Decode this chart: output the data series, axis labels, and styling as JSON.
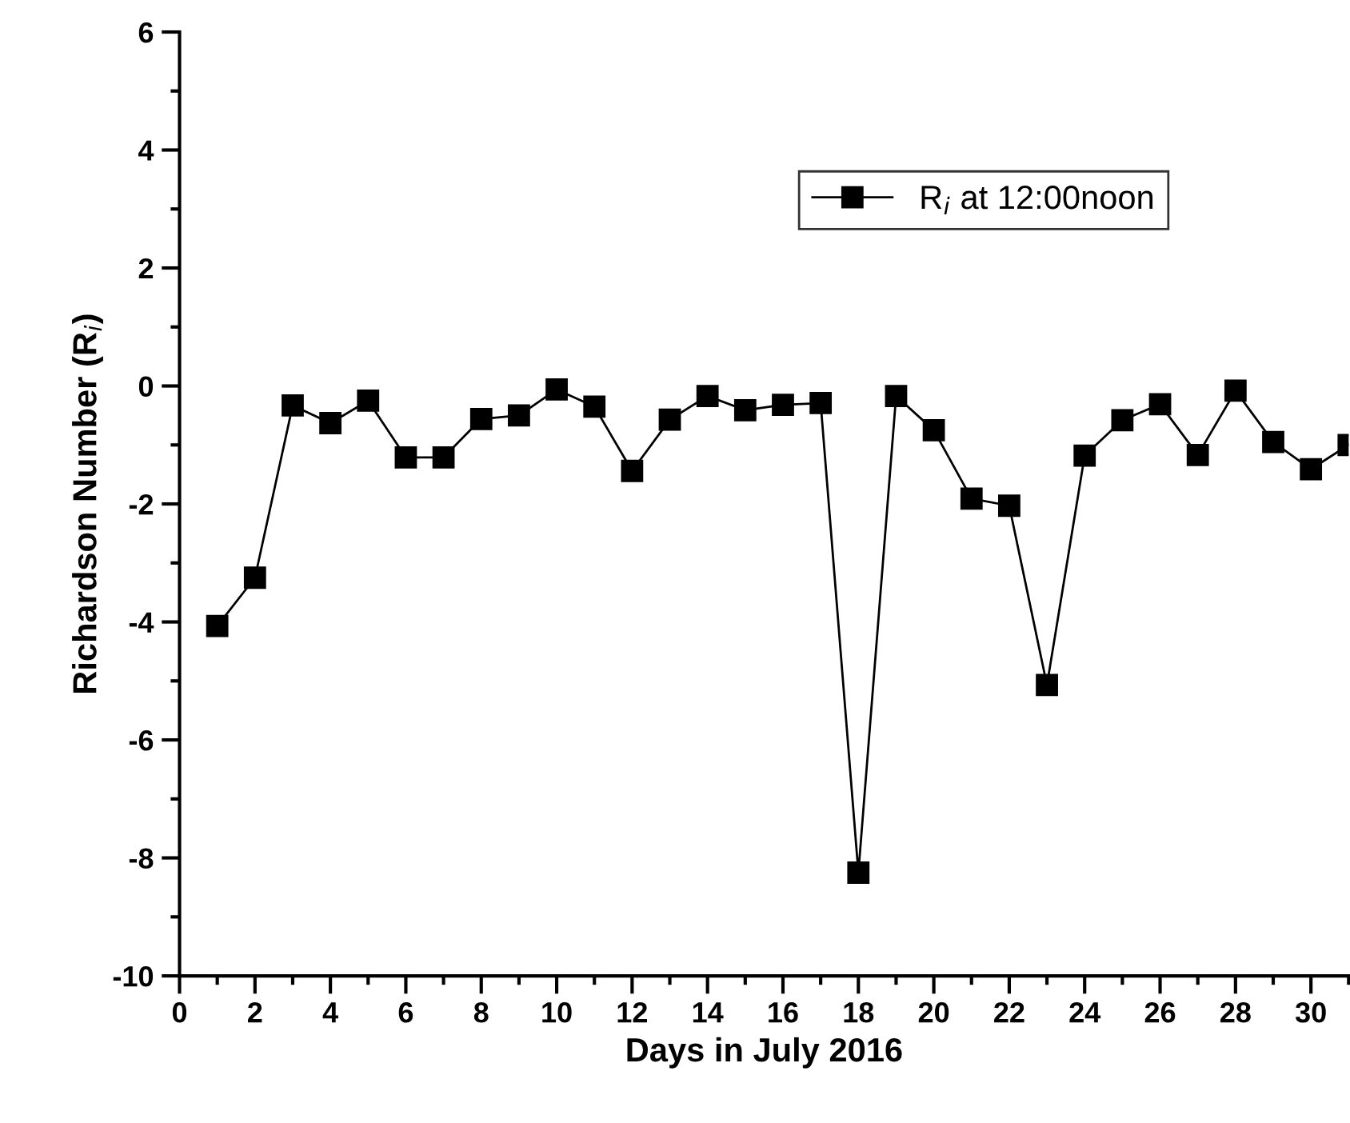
{
  "chart_data": {
    "type": "line",
    "xlabel": "Days in July 2016",
    "ylabel": "Richardson Number (R$_{i}$)",
    "x": [
      1,
      2,
      3,
      4,
      5,
      6,
      7,
      8,
      9,
      10,
      11,
      12,
      13,
      14,
      15,
      16,
      17,
      18,
      19,
      20,
      21,
      22,
      23,
      24,
      25,
      26,
      27,
      28,
      29,
      30,
      31
    ],
    "series": [
      {
        "name": "R$_{i}$ at 12:00noon",
        "color": "#000000",
        "values": [
          -4.07,
          -3.25,
          -0.33,
          -0.63,
          -0.25,
          -1.21,
          -1.21,
          -0.56,
          -0.5,
          -0.06,
          -0.35,
          -1.44,
          -0.57,
          -0.17,
          -0.41,
          -0.32,
          -0.29,
          -8.25,
          -0.17,
          -0.75,
          -1.91,
          -2.03,
          -5.07,
          -1.18,
          -0.58,
          -0.31,
          -1.17,
          -0.08,
          -0.95,
          -1.41,
          -1.0
        ]
      }
    ],
    "xlim": [
      0,
      31
    ],
    "ylim": [
      -10,
      6
    ],
    "xticks": [
      0,
      {
        "value": 1,
        "label": null
      },
      2,
      {
        "value": 3,
        "label": null
      },
      4,
      {
        "value": 5,
        "label": null
      },
      6,
      {
        "value": 7,
        "label": null
      },
      8,
      {
        "value": 9,
        "label": null
      },
      10,
      {
        "value": 11,
        "label": null
      },
      12,
      {
        "value": 13,
        "label": null
      },
      14,
      {
        "value": 15,
        "label": null
      },
      16,
      {
        "value": 17,
        "label": null
      },
      18,
      {
        "value": 19,
        "label": null
      },
      20,
      {
        "value": 21,
        "label": null
      },
      22,
      {
        "value": 23,
        "label": null
      },
      24,
      {
        "value": 25,
        "label": null
      },
      26,
      {
        "value": 27,
        "label": null
      },
      28,
      {
        "value": 29,
        "label": null
      },
      30,
      {
        "value": 31,
        "label": null
      }
    ],
    "yticks": [
      -10,
      {
        "value": -9,
        "label": null
      },
      -8,
      {
        "value": -7,
        "label": null
      },
      -6,
      {
        "value": -5,
        "label": null
      },
      -4,
      {
        "value": -3,
        "label": null
      },
      -2,
      {
        "value": -1,
        "label": null
      },
      0,
      {
        "value": 1,
        "label": null
      },
      2,
      {
        "value": 3,
        "label": null
      },
      4,
      {
        "value": 5,
        "label": null
      },
      6
    ],
    "marker": "square",
    "line_style": "solid",
    "grid": false,
    "legend": "top right"
  }
}
